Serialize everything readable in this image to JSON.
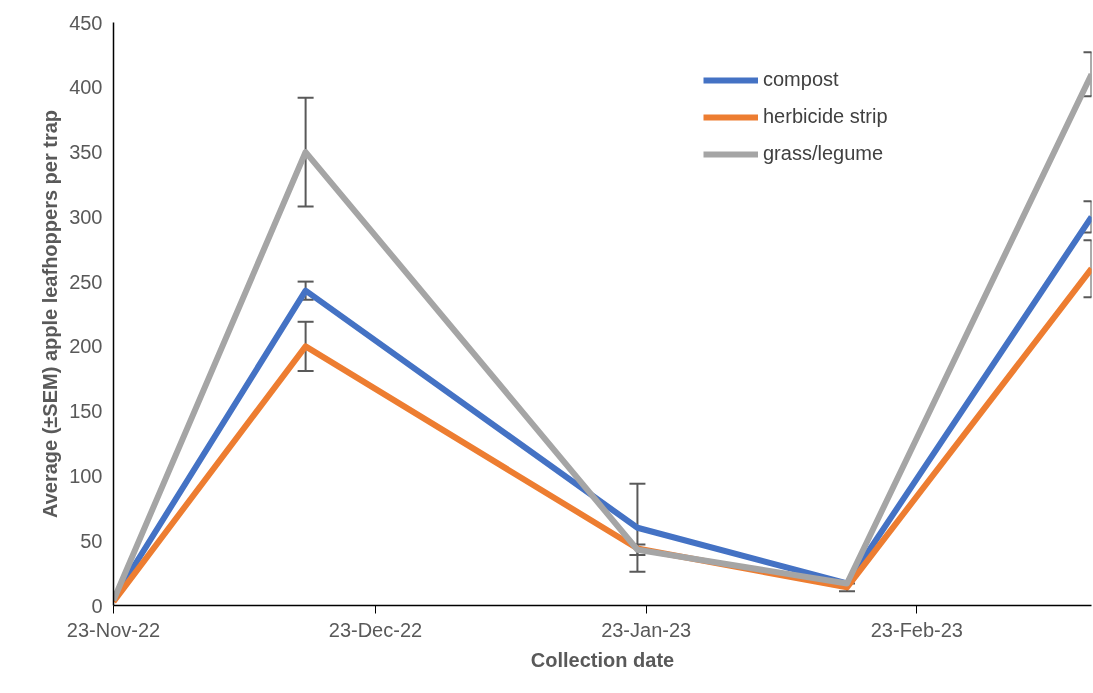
{
  "chart_data": {
    "type": "line",
    "xlabel": "Collection date",
    "ylabel": "Average (±SEM) apple leafhoppers per trap",
    "x": [
      "2022-11-23",
      "2022-12-15",
      "2023-01-22",
      "2023-02-15",
      "2023-03-15"
    ],
    "series": [
      {
        "name": "compost",
        "color": "#4472c4",
        "values": [
          5,
          243,
          60,
          17,
          300
        ],
        "errors": [
          null,
          7,
          34,
          null,
          12
        ]
      },
      {
        "name": "herbicide strip",
        "color": "#ed7d31",
        "values": [
          3,
          200,
          44,
          14,
          260
        ],
        "errors": [
          null,
          19,
          null,
          3,
          22
        ]
      },
      {
        "name": "grass/legume",
        "color": "#a5a5a5",
        "values": [
          4,
          350,
          43,
          17,
          410
        ],
        "errors": [
          null,
          42,
          4,
          null,
          17
        ]
      }
    ],
    "xlim": [
      "2022-11-23",
      "2023-03-15"
    ],
    "xticks": [
      {
        "value": "2022-11-23",
        "label": "23-Nov-22"
      },
      {
        "value": "2022-12-23",
        "label": "23-Dec-22"
      },
      {
        "value": "2023-01-23",
        "label": "23-Jan-23"
      },
      {
        "value": "2023-02-23",
        "label": "23-Feb-23"
      }
    ],
    "ylim": [
      0,
      450
    ],
    "yticks": [
      0,
      50,
      100,
      150,
      200,
      250,
      300,
      350,
      400,
      450
    ],
    "grid": false,
    "legend": "top right",
    "marker": "none",
    "line_style": "solid"
  }
}
